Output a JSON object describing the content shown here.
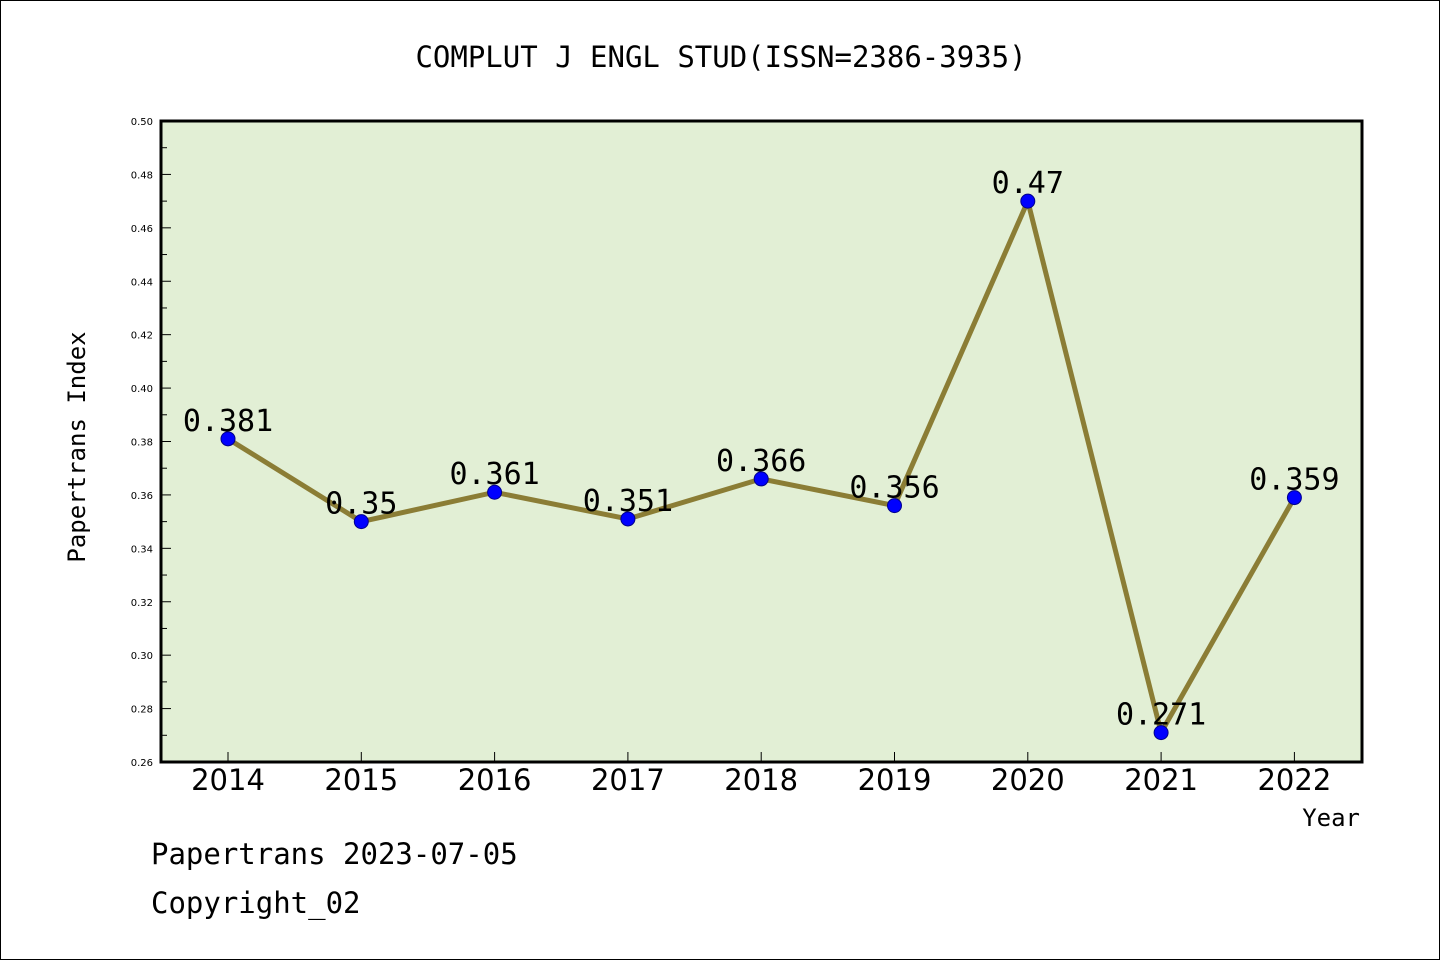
{
  "chart_data": {
    "type": "line",
    "title": "COMPLUT J ENGL STUD(ISSN=2386-3935)",
    "xlabel": "Year",
    "ylabel": "Papertrans Index",
    "categories": [
      "2014",
      "2015",
      "2016",
      "2017",
      "2018",
      "2019",
      "2020",
      "2021",
      "2022"
    ],
    "series": [
      {
        "values": [
          0.381,
          0.35,
          0.361,
          0.351,
          0.366,
          0.356,
          0.47,
          0.271,
          0.359
        ],
        "labels": [
          "0.381",
          "0.35",
          "0.361",
          "0.351",
          "0.366",
          "0.356",
          "0.47",
          "0.271",
          "0.359"
        ]
      }
    ],
    "ylim": [
      0.26,
      0.5
    ],
    "yticks": [
      "0.26",
      "0.28",
      "0.30",
      "0.32",
      "0.34",
      "0.36",
      "0.38",
      "0.40",
      "0.42",
      "0.44",
      "0.46",
      "0.48",
      "0.50"
    ],
    "grid": false,
    "legend": "none",
    "colors": {
      "plot_background": "#e2efd5",
      "line": "#8b7d35",
      "marker": "#0000ff"
    }
  },
  "footer": {
    "date_text": "Papertrans 2023-07-05",
    "copyright_text": "Copyright_02"
  }
}
